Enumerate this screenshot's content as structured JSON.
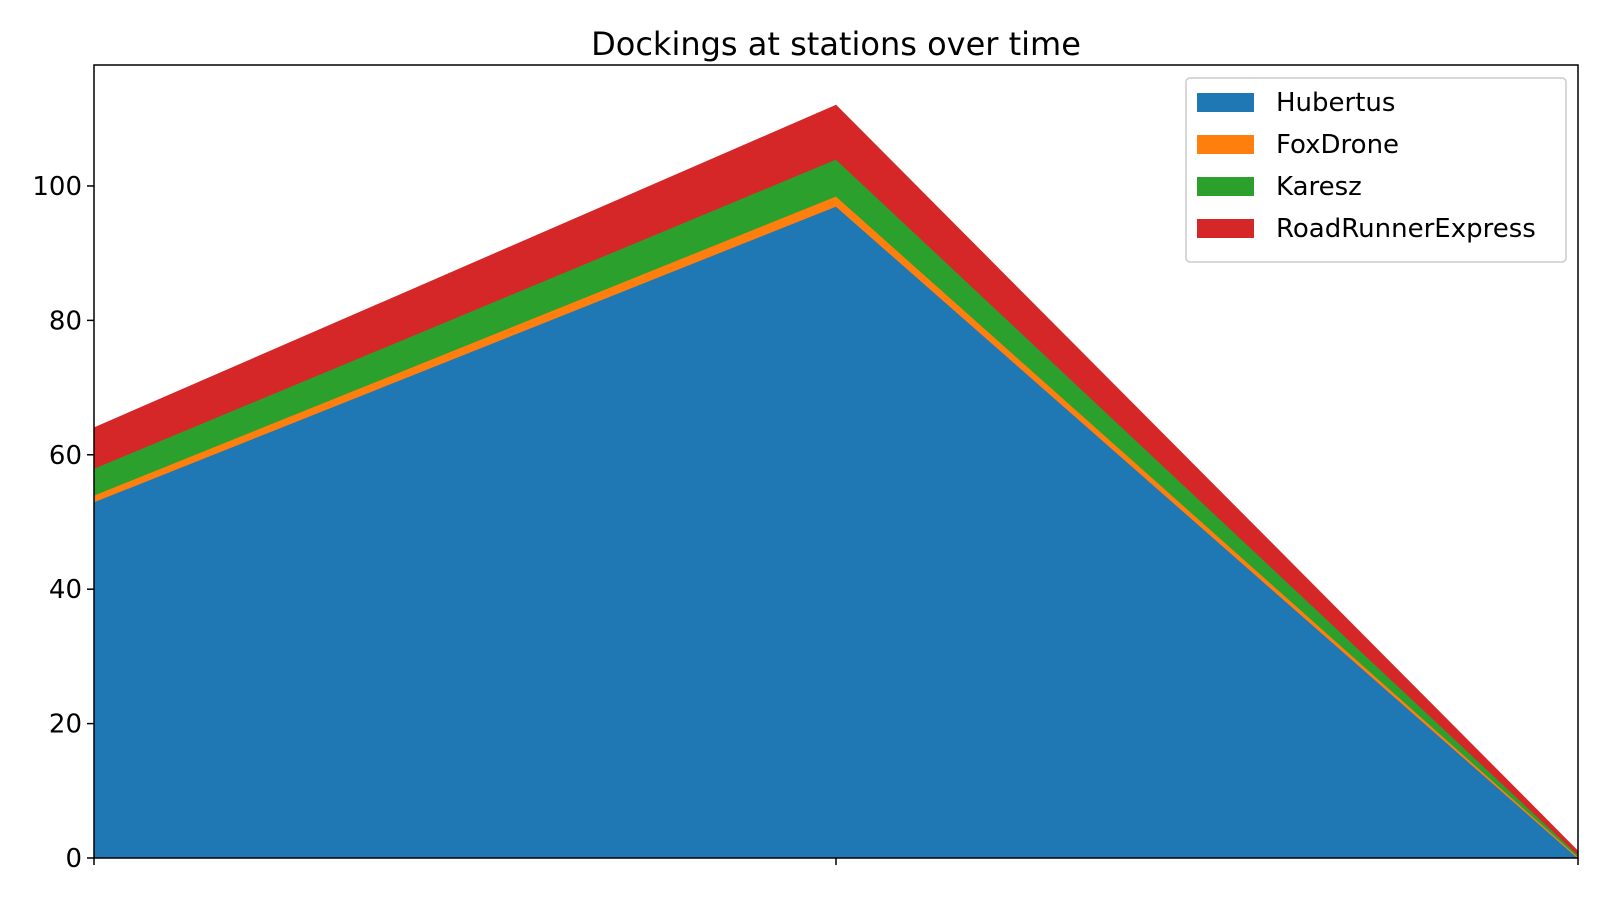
{
  "chart_data": {
    "type": "area",
    "stacked": true,
    "title": "Dockings at stations over time",
    "xlabel": "",
    "ylabel": "",
    "x": [
      0,
      1,
      2
    ],
    "xticks_labeled": false,
    "ylim": [
      0,
      118
    ],
    "yticks": [
      0,
      20,
      40,
      60,
      80,
      100
    ],
    "grid": false,
    "legend_position": "top-right",
    "series": [
      {
        "name": "Hubertus",
        "color": "#1f77b4",
        "values": [
          53,
          97,
          0
        ]
      },
      {
        "name": "FoxDrone",
        "color": "#ff7f0e",
        "values": [
          1,
          1.5,
          0.2
        ]
      },
      {
        "name": "Karesz",
        "color": "#2ca02c",
        "values": [
          4,
          5.5,
          0.3
        ]
      },
      {
        "name": "RoadRunnerExpress",
        "color": "#d62728",
        "values": [
          6,
          8,
          0.5
        ]
      }
    ]
  }
}
